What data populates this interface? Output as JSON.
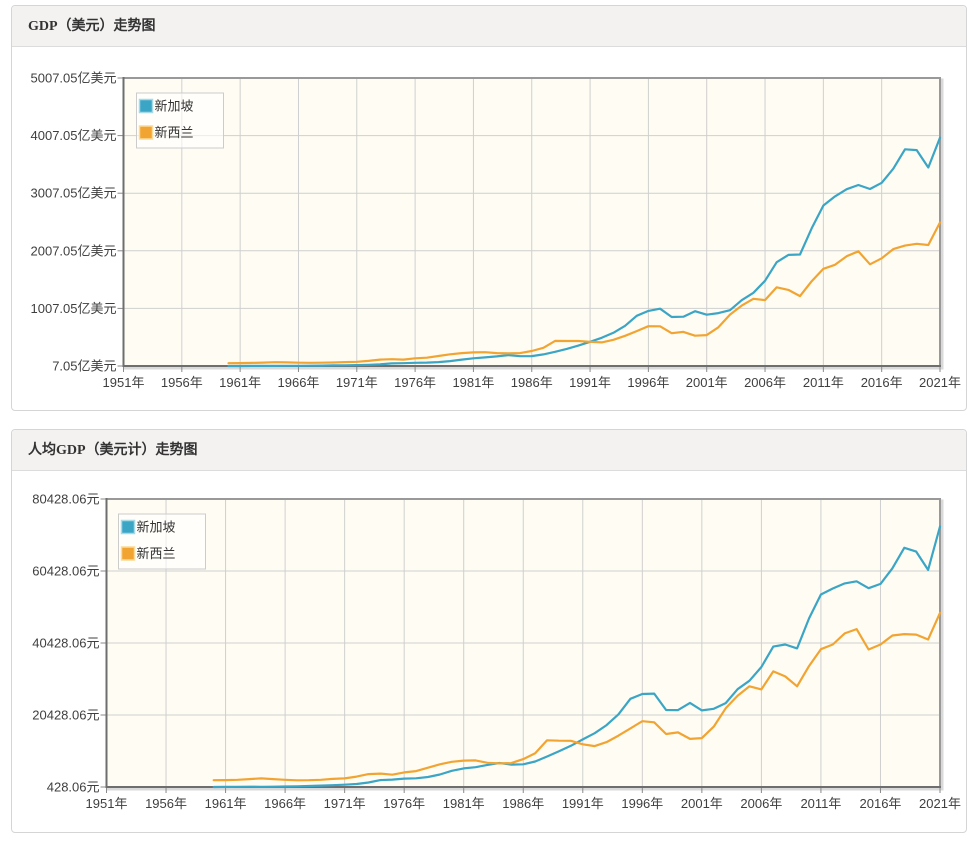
{
  "page": {
    "background": "#ffffff"
  },
  "panels": [
    {
      "title": "GDP（美元）走势图"
    },
    {
      "title": "人均GDP（美元计）走势图"
    }
  ],
  "palette": {
    "series_colors": [
      "#3BA5C6",
      "#F2A432"
    ],
    "series_colors_light": [
      "#A8DAE6",
      "#FBDC9A"
    ],
    "plot_background": "#FFFDF3",
    "grid_color": "#cfcfcf",
    "border_color": "#999999",
    "axis_color": "#6e6e6e",
    "tick_color": "#8a8a8a",
    "label_color": "#3f3f3f",
    "legend_border": "#cccccc",
    "legend_background": "rgba(255,255,255,0.6)"
  },
  "chart_data": [
    {
      "type": "line",
      "title": "GDP（美元）走势图",
      "unit": "亿美元",
      "xlabel": "",
      "ylabel": "",
      "x_tick_labels": [
        "1951年",
        "1956年",
        "1961年",
        "1966年",
        "1971年",
        "1976年",
        "1981年",
        "1986年",
        "1991年",
        "1996年",
        "2001年",
        "2006年",
        "2011年",
        "2016年",
        "2021年"
      ],
      "x_tick_years": [
        1951,
        1956,
        1961,
        1966,
        1971,
        1976,
        1981,
        1986,
        1991,
        1996,
        2001,
        2006,
        2011,
        2016,
        2021
      ],
      "x_range_years": [
        1951,
        2021
      ],
      "y_tick_labels": [
        "7.05亿美元",
        "1007.05亿美元",
        "2007.05亿美元",
        "3007.05亿美元",
        "4007.05亿美元",
        "5007.05亿美元"
      ],
      "ylim": [
        7.05,
        5007.05
      ],
      "grid": true,
      "legend_position": "top-left",
      "years": [
        1960,
        1961,
        1962,
        1963,
        1964,
        1965,
        1966,
        1967,
        1968,
        1969,
        1970,
        1971,
        1972,
        1973,
        1974,
        1975,
        1976,
        1977,
        1978,
        1979,
        1980,
        1981,
        1982,
        1983,
        1984,
        1985,
        1986,
        1987,
        1988,
        1989,
        1990,
        1991,
        1992,
        1993,
        1994,
        1995,
        1996,
        1997,
        1998,
        1999,
        2000,
        2001,
        2002,
        2003,
        2004,
        2005,
        2006,
        2007,
        2008,
        2009,
        2010,
        2011,
        2012,
        2013,
        2014,
        2015,
        2016,
        2017,
        2018,
        2019,
        2020,
        2021
      ],
      "series": [
        {
          "name": "新加坡",
          "values": [
            7.05,
            7.65,
            8.26,
            9.18,
            8.79,
            9.75,
            10.96,
            12.37,
            14.26,
            16.64,
            19.21,
            22.63,
            27.22,
            36.86,
            52.2,
            56.33,
            63.27,
            66.21,
            75.08,
            92.6,
            118.96,
            141.5,
            157.0,
            173.0,
            196.2,
            176.9,
            178.9,
            209.0,
            253.7,
            303.9,
            361.4,
            427.8,
            496.4,
            584.0,
            705.0,
            879.0,
            964.0,
            1001.0,
            857.0,
            863.0,
            958.0,
            898.0,
            925.0,
            976.0,
            1150.0,
            1278.0,
            1486.0,
            1809.0,
            1936.0,
            1942.0,
            2398.0,
            2794.0,
            2951.0,
            3076.0,
            3149.0,
            3080.0,
            3187.0,
            3433.0,
            3770.0,
            3755.0,
            3453.0,
            3970.0
          ]
        },
        {
          "name": "新西兰",
          "values": [
            54.9,
            56.7,
            60.1,
            66.5,
            72.6,
            69.0,
            64.9,
            62.5,
            63.9,
            67.2,
            75.6,
            80.5,
            96.0,
            118.5,
            125.3,
            118.7,
            141.0,
            151.8,
            181.0,
            210.0,
            231.4,
            242.6,
            247.4,
            230.2,
            226.9,
            230.9,
            268.3,
            323.4,
            443.5,
            441.6,
            441.2,
            428.0,
            416.5,
            461.8,
            532.1,
            612.9,
            697.5,
            695.5,
            577.2,
            599.0,
            532.7,
            543.2,
            679.4,
            898.7,
            1055.2,
            1172.9,
            1151.6,
            1373.2,
            1327.4,
            1221.2,
            1479.0,
            1695.4,
            1764.0,
            1913.6,
            1997.9,
            1772.7,
            1876.0,
            2035.8,
            2097.8,
            2129.0,
            2107.3,
            2498.9
          ]
        }
      ]
    },
    {
      "type": "line",
      "title": "人均GDP（美元计）走势图",
      "unit": "元",
      "xlabel": "",
      "ylabel": "",
      "x_tick_labels": [
        "1951年",
        "1956年",
        "1961年",
        "1966年",
        "1971年",
        "1976年",
        "1981年",
        "1986年",
        "1991年",
        "1996年",
        "2001年",
        "2006年",
        "2011年",
        "2016年",
        "2021年"
      ],
      "x_tick_years": [
        1951,
        1956,
        1961,
        1966,
        1971,
        1976,
        1981,
        1986,
        1991,
        1996,
        2001,
        2006,
        2011,
        2016,
        2021
      ],
      "x_range_years": [
        1951,
        2021
      ],
      "y_tick_labels": [
        "428.06元",
        "20428.06元",
        "40428.06元",
        "60428.06元",
        "80428.06元"
      ],
      "ylim": [
        428.06,
        80428.06
      ],
      "grid": true,
      "legend_position": "top-left",
      "years": [
        1960,
        1961,
        1962,
        1963,
        1964,
        1965,
        1966,
        1967,
        1968,
        1969,
        1970,
        1971,
        1972,
        1973,
        1974,
        1975,
        1976,
        1977,
        1978,
        1979,
        1980,
        1981,
        1982,
        1983,
        1984,
        1985,
        1986,
        1987,
        1988,
        1989,
        1990,
        1991,
        1992,
        1993,
        1994,
        1995,
        1996,
        1997,
        1998,
        1999,
        2000,
        2001,
        2002,
        2003,
        2004,
        2005,
        2006,
        2007,
        2008,
        2009,
        2010,
        2011,
        2012,
        2013,
        2014,
        2015,
        2016,
        2017,
        2018,
        2019,
        2020,
        2021
      ],
      "series": [
        {
          "name": "新加坡",
          "values": [
            428,
            449,
            472,
            511,
            485,
            516,
            567,
            626,
            708,
            812,
            926,
            1071,
            1264,
            1685,
            2341,
            2490,
            2759,
            2847,
            3194,
            3901,
            4928,
            5586,
            5932,
            6560,
            7100,
            6650,
            6730,
            7500,
            8914,
            10369,
            11862,
            13645,
            15364,
            17630,
            20620,
            24940,
            26260,
            26370,
            21824,
            21800,
            23793,
            21700,
            22150,
            23720,
            27600,
            29960,
            33770,
            39420,
            40010,
            38940,
            47230,
            53900,
            55560,
            56970,
            57570,
            55650,
            56840,
            61170,
            66860,
            65830,
            60730,
            72790
          ]
        },
        {
          "name": "新西兰",
          "values": [
            2315,
            2345,
            2425,
            2630,
            2805,
            2625,
            2420,
            2290,
            2325,
            2425,
            2690,
            2825,
            3310,
            4005,
            4150,
            3855,
            4490,
            4850,
            5800,
            6730,
            7440,
            7775,
            7830,
            7150,
            6980,
            7060,
            8180,
            9800,
            13400,
            13300,
            13250,
            12300,
            11800,
            12900,
            14700,
            16700,
            18700,
            18400,
            15150,
            15600,
            13800,
            14000,
            17200,
            22300,
            25800,
            28400,
            27550,
            32550,
            31150,
            28400,
            34000,
            38700,
            40000,
            43100,
            44300,
            38620,
            40000,
            42500,
            42900,
            42750,
            41400,
            48800
          ]
        }
      ]
    }
  ]
}
